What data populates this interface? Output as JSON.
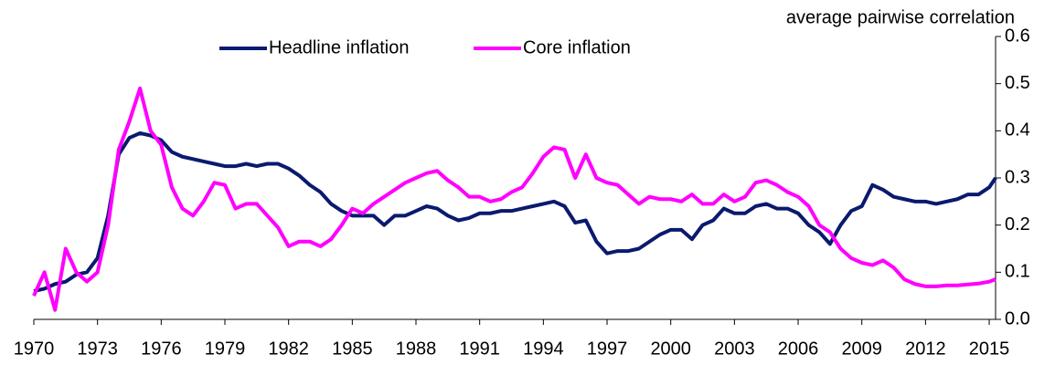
{
  "chart_data": {
    "type": "line",
    "y_axis_label": "average pairwise correlation",
    "legend": "top",
    "x": [
      1970,
      1970.5,
      1971,
      1971.5,
      1972,
      1972.5,
      1973,
      1973.5,
      1974,
      1974.5,
      1975,
      1975.5,
      1976,
      1976.5,
      1977,
      1977.5,
      1978,
      1978.5,
      1979,
      1979.5,
      1980,
      1980.5,
      1981,
      1981.5,
      1982,
      1982.5,
      1983,
      1983.5,
      1984,
      1984.5,
      1985,
      1985.5,
      1986,
      1986.5,
      1987,
      1987.5,
      1988,
      1988.5,
      1989,
      1989.5,
      1990,
      1990.5,
      1991,
      1991.5,
      1992,
      1992.5,
      1993,
      1993.5,
      1994,
      1994.5,
      1995,
      1995.5,
      1996,
      1996.5,
      1997,
      1997.5,
      1998,
      1998.5,
      1999,
      1999.5,
      2000,
      2000.5,
      2001,
      2001.5,
      2002,
      2002.5,
      2003,
      2003.5,
      2004,
      2004.5,
      2005,
      2005.5,
      2006,
      2006.5,
      2007,
      2007.5,
      2008,
      2008.5,
      2009,
      2009.5,
      2010,
      2010.5,
      2011,
      2011.5,
      2012,
      2012.5,
      2013,
      2013.5,
      2014,
      2014.5,
      2015,
      2015.3
    ],
    "series": [
      {
        "name": "Headline inflation",
        "color": "#0a1a6e",
        "values": [
          0.06,
          0.065,
          0.075,
          0.08,
          0.095,
          0.1,
          0.13,
          0.22,
          0.35,
          0.385,
          0.395,
          0.39,
          0.38,
          0.355,
          0.345,
          0.34,
          0.335,
          0.33,
          0.325,
          0.325,
          0.33,
          0.325,
          0.33,
          0.33,
          0.32,
          0.305,
          0.285,
          0.27,
          0.245,
          0.23,
          0.22,
          0.22,
          0.22,
          0.2,
          0.22,
          0.22,
          0.23,
          0.24,
          0.235,
          0.22,
          0.21,
          0.215,
          0.225,
          0.225,
          0.23,
          0.23,
          0.235,
          0.24,
          0.245,
          0.25,
          0.24,
          0.205,
          0.21,
          0.165,
          0.14,
          0.145,
          0.145,
          0.15,
          0.165,
          0.18,
          0.19,
          0.19,
          0.17,
          0.2,
          0.21,
          0.235,
          0.225,
          0.225,
          0.24,
          0.245,
          0.235,
          0.235,
          0.225,
          0.2,
          0.185,
          0.16,
          0.2,
          0.23,
          0.24,
          0.285,
          0.275,
          0.26,
          0.255,
          0.25,
          0.25,
          0.245,
          0.25,
          0.255,
          0.265,
          0.265,
          0.28,
          0.3
        ]
      },
      {
        "name": "Core inflation",
        "color": "#ff00ff",
        "values": [
          0.05,
          0.1,
          0.02,
          0.15,
          0.1,
          0.08,
          0.1,
          0.2,
          0.36,
          0.42,
          0.49,
          0.4,
          0.37,
          0.28,
          0.235,
          0.22,
          0.25,
          0.29,
          0.285,
          0.235,
          0.245,
          0.245,
          0.22,
          0.195,
          0.155,
          0.165,
          0.165,
          0.155,
          0.17,
          0.2,
          0.235,
          0.225,
          0.245,
          0.26,
          0.275,
          0.29,
          0.3,
          0.31,
          0.315,
          0.295,
          0.28,
          0.26,
          0.26,
          0.25,
          0.255,
          0.27,
          0.28,
          0.31,
          0.345,
          0.365,
          0.36,
          0.3,
          0.35,
          0.3,
          0.29,
          0.285,
          0.265,
          0.245,
          0.26,
          0.255,
          0.255,
          0.25,
          0.265,
          0.245,
          0.245,
          0.265,
          0.25,
          0.26,
          0.29,
          0.295,
          0.285,
          0.27,
          0.26,
          0.24,
          0.2,
          0.185,
          0.15,
          0.13,
          0.12,
          0.115,
          0.125,
          0.11,
          0.085,
          0.075,
          0.07,
          0.07,
          0.072,
          0.072,
          0.074,
          0.076,
          0.08,
          0.085
        ]
      }
    ],
    "xlim": [
      1970,
      2015.3
    ],
    "xticks": [
      1970,
      1973,
      1976,
      1979,
      1982,
      1985,
      1988,
      1991,
      1994,
      1997,
      2000,
      2003,
      2006,
      2009,
      2012,
      2015
    ],
    "ylim": [
      0,
      0.6
    ],
    "yticks": [
      {
        "value": 0,
        "label": "0.0"
      },
      {
        "value": 0.1,
        "label": "0.1"
      },
      {
        "value": 0.2,
        "label": "0.2"
      },
      {
        "value": 0.3,
        "label": "0.3"
      },
      {
        "value": 0.4,
        "label": "0.4"
      },
      {
        "value": 0.5,
        "label": "0.5"
      },
      {
        "value": 0.6,
        "label": "0.6"
      }
    ],
    "grid": false
  }
}
